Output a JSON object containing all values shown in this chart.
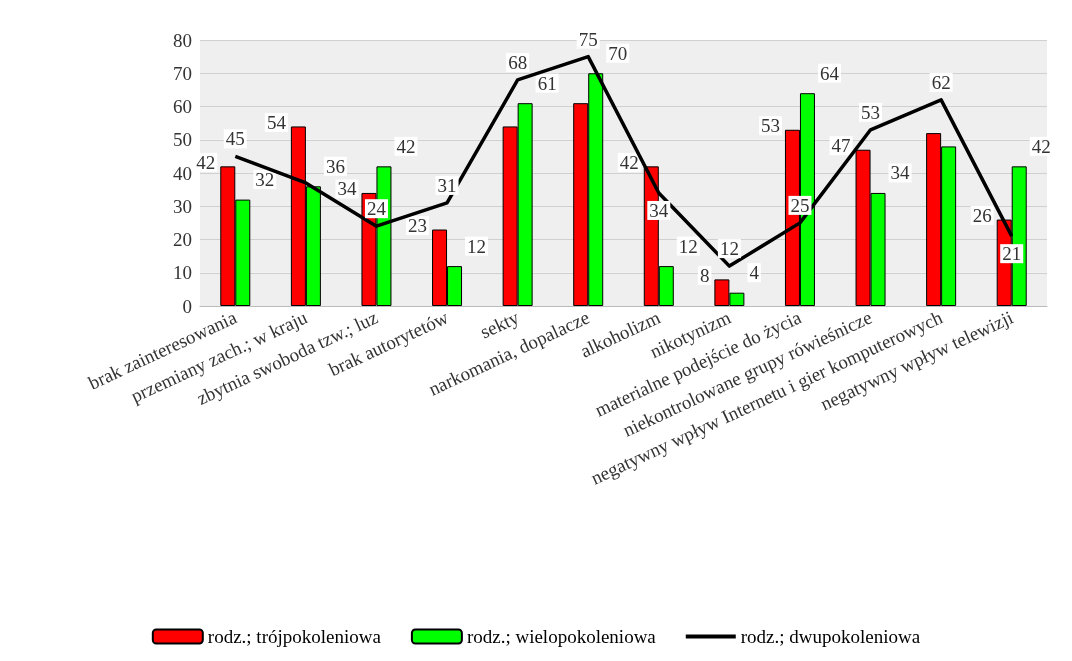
{
  "chart_data": {
    "type": "bar",
    "categories": [
      "brak zainteresowania",
      "przemiany zach.; w kraju",
      "zbytnia swoboda tzw.; luz",
      "brak autorytetów",
      "sekty",
      "narkomania, dopalacze",
      "alkoholizm",
      "nikotynizm",
      "materialne podejście do życia",
      "niekontrolowane grupy rówieśnicze",
      "negatywny wpływ Internetu i gier komputerowych",
      "negatywny wpływ telewizji"
    ],
    "series": [
      {
        "name": "rodz.; trójpokoleniowa",
        "color": "#ff0000",
        "values": [
          42,
          54,
          34,
          23,
          54,
          61,
          42,
          8,
          53,
          47,
          52,
          26
        ],
        "value_labels": [
          "42",
          "54",
          "34",
          "23",
          null,
          null,
          "42",
          "8",
          "53",
          "47",
          null,
          "26"
        ]
      },
      {
        "name": "rodz.; wielopokoleniowa",
        "color": "#00ff00",
        "values": [
          32,
          36,
          42,
          12,
          61,
          70,
          12,
          4,
          64,
          34,
          48,
          42
        ],
        "value_labels": [
          "32",
          "36",
          "42",
          "12",
          "61",
          "70",
          "12",
          "4",
          "64",
          "34",
          null,
          "42"
        ]
      },
      {
        "name": "rodz.; dwupokoleniowa",
        "type": "line",
        "color": "#000000",
        "values": [
          45,
          37,
          24,
          31,
          68,
          75,
          34,
          12,
          25,
          53,
          62,
          21
        ],
        "value_labels": [
          "45",
          null,
          "24",
          "31",
          "68",
          "75",
          "34",
          "12",
          "25",
          "53",
          "62",
          "21"
        ]
      }
    ],
    "ylim": [
      0,
      80
    ],
    "yticks": [
      0,
      10,
      20,
      30,
      40,
      50,
      60,
      70,
      80
    ],
    "grid": "y",
    "legend": "bottom"
  }
}
